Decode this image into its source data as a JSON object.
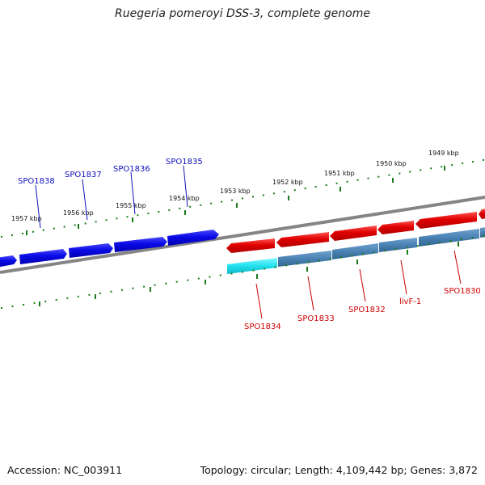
{
  "title": "Ruegeria pomeroyi DSS-3, complete genome",
  "footer": {
    "accession": "Accession: NC_003911",
    "summary": "Topology: circular; Length: 4,109,442 bp; Genes: 3,872"
  },
  "colors": {
    "forward_gene": "#0a0ae6",
    "reverse_gene": "#e00000",
    "cds_feature": "#4a82b4",
    "rna_feature": "#22e0ee",
    "backbone": "#858585",
    "tick": "#1a7a1a",
    "forward_label": "#1010c0",
    "reverse_label": "#cc0000"
  },
  "ruler_outer": [
    "1957 kbp",
    "1956 kbp",
    "1955 kbp",
    "1954 kbp",
    "1953 kbp",
    "1952 kbp",
    "1951 kbp",
    "1950 kbp",
    "1949 kbp"
  ],
  "forward_labels": [
    "SPO1838",
    "SPO1837",
    "SPO1836",
    "SPO1835"
  ],
  "reverse_labels": [
    "SPO1834",
    "SPO1833",
    "SPO1832",
    "livF-1",
    "SPO1830"
  ]
}
